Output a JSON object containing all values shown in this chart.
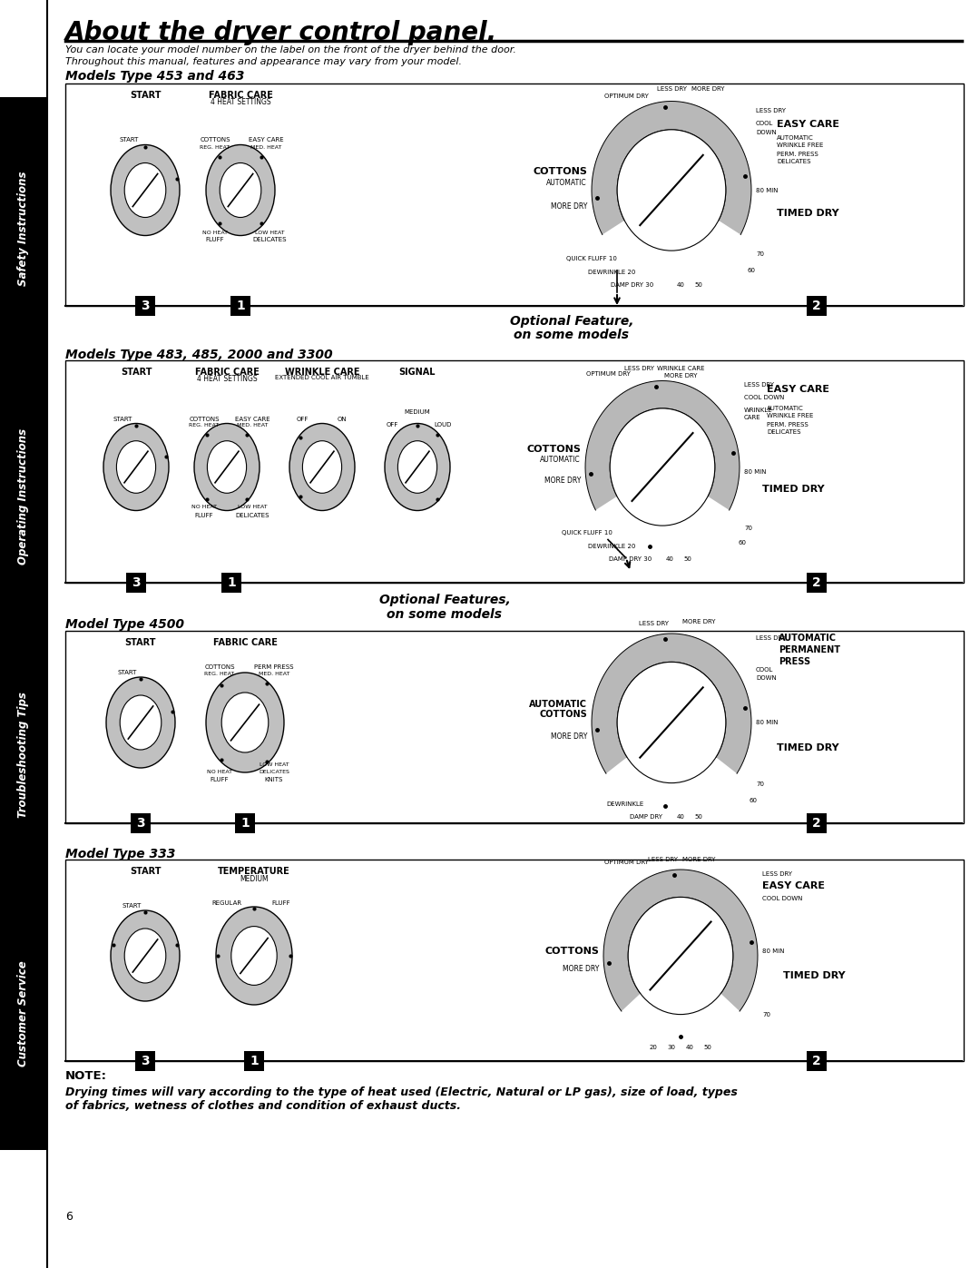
{
  "title": "About the dryer control panel.",
  "subtitle_line1": "You can locate your model number on the label on the front of the dryer behind the door.",
  "subtitle_line2": "Throughout this manual, features and appearance may vary from your model.",
  "section1_title": "Models Type 453 and 463",
  "section2_title": "Models Type 483, 485, 2000 and 3300",
  "section3_title": "Model Type 4500",
  "section4_title": "Model Type 333",
  "note_title": "NOTE:",
  "note_text": "Drying times will vary according to the type of heat used (Electric, Natural or LP gas), size of load, types\nof fabrics, wetness of clothes and condition of exhaust ducts.",
  "page_number": "6",
  "side_labels": [
    "Safety Instructions",
    "Operating Instructions",
    "Troubleshooting Tips",
    "Customer Service"
  ],
  "bg_color": "#ffffff",
  "knob_gray": "#c0c0c0",
  "dial_gray": "#b8b8b8"
}
